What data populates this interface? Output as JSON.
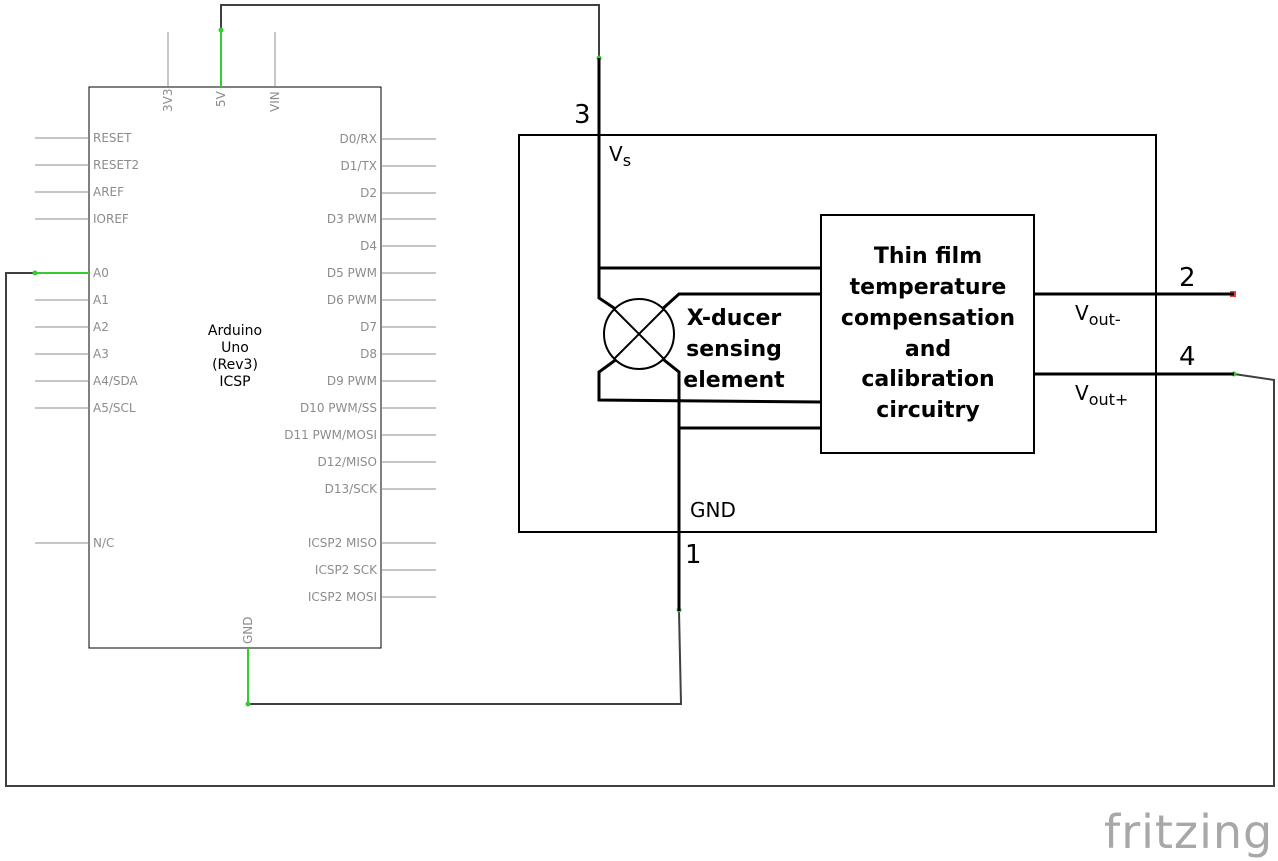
{
  "arduino": {
    "title_lines": [
      "Arduino",
      "Uno",
      "(Rev3)",
      "ICSP"
    ],
    "top_pins": [
      "3V3",
      "5V",
      "VIN"
    ],
    "left_pins": [
      "RESET",
      "RESET2",
      "AREF",
      "IOREF",
      "A0",
      "A1",
      "A2",
      "A3",
      "A4/SDA",
      "A5/SCL",
      "N/C"
    ],
    "right_pins": [
      "D0/RX",
      "D1/TX",
      "D2",
      "D3 PWM",
      "D4",
      "D5 PWM",
      "D6 PWM",
      "D7",
      "D8",
      "D9 PWM",
      "D10 PWM/SS",
      "D11 PWM/MOSI",
      "D12/MISO",
      "D13/SCK",
      "ICSP2 MISO",
      "ICSP2 SCK",
      "ICSP2 MOSI"
    ],
    "bottom_pin": "GND"
  },
  "sensor": {
    "pin_numbers": {
      "vs": "3",
      "vout_minus": "2",
      "vout_plus": "4",
      "gnd": "1"
    },
    "vs_label": {
      "main": "V",
      "sub": "s"
    },
    "gnd_label": "GND",
    "vout_minus_label": {
      "main": "V",
      "sub": "out-"
    },
    "vout_plus_label": {
      "main": "V",
      "sub": "out+"
    },
    "xducer_lines": [
      "X-ducer",
      "sensing",
      "element"
    ],
    "circuit_lines": [
      "Thin film",
      "temperature",
      "compensation",
      "and",
      "calibration",
      "circuitry"
    ]
  },
  "colors": {
    "wire": "#404040",
    "connected_pin": "#33cc33",
    "unconnected_end": "#e04040",
    "pin_line": "#8c8c8c"
  },
  "footer": {
    "logo_text": "fritzing"
  }
}
